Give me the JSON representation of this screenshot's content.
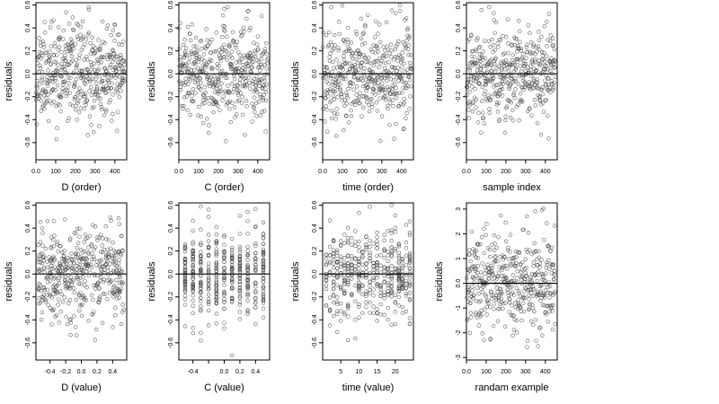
{
  "chart_data": [
    {
      "type": "scatter",
      "xlabel": "D (order)",
      "ylabel": "residuals",
      "xlim": [
        0,
        460
      ],
      "ylim": [
        -0.75,
        0.62
      ],
      "xticks": [
        0,
        100,
        200,
        300,
        400
      ],
      "yticks": [
        -0.6,
        -0.4,
        -0.2,
        0.0,
        0.2,
        0.4,
        0.6
      ],
      "hline": 0,
      "n_points": 450,
      "x_pattern": "index",
      "y_spread": 0.2,
      "seed": 11
    },
    {
      "type": "scatter",
      "xlabel": "C (order)",
      "ylabel": "residuals",
      "xlim": [
        0,
        460
      ],
      "ylim": [
        -0.75,
        0.62
      ],
      "xticks": [
        0,
        100,
        200,
        300,
        400
      ],
      "yticks": [
        -0.6,
        -0.4,
        -0.2,
        0.0,
        0.2,
        0.4,
        0.6
      ],
      "hline": 0,
      "n_points": 450,
      "x_pattern": "index",
      "y_spread": 0.2,
      "seed": 23
    },
    {
      "type": "scatter",
      "xlabel": "time (order)",
      "ylabel": "residuals",
      "xlim": [
        0,
        460
      ],
      "ylim": [
        -0.75,
        0.62
      ],
      "xticks": [
        0,
        100,
        200,
        300,
        400
      ],
      "yticks": [
        -0.6,
        -0.4,
        -0.2,
        0.0,
        0.2,
        0.4,
        0.6
      ],
      "hline": 0,
      "n_points": 450,
      "x_pattern": "index",
      "y_spread": 0.2,
      "seed": 37
    },
    {
      "type": "scatter",
      "xlabel": "sample index",
      "ylabel": "residuals",
      "xlim": [
        0,
        460
      ],
      "ylim": [
        -0.75,
        0.62
      ],
      "xticks": [
        0,
        100,
        200,
        300,
        400
      ],
      "yticks": [
        -0.6,
        -0.4,
        -0.2,
        0.0,
        0.2,
        0.4,
        0.6
      ],
      "hline": 0,
      "n_points": 450,
      "x_pattern": "index",
      "y_spread": 0.2,
      "seed": 41
    },
    {
      "type": "scatter",
      "xlabel": "D (value)",
      "ylabel": "residuals",
      "xlim": [
        -0.58,
        0.58
      ],
      "ylim": [
        -0.75,
        0.62
      ],
      "xticks": [
        -0.4,
        -0.2,
        0.0,
        0.2,
        0.4
      ],
      "xtick_labels": [
        "-0.4",
        "-0.2",
        "0.0",
        "0.2",
        "0.4"
      ],
      "yticks": [
        -0.6,
        -0.4,
        -0.2,
        0.0,
        0.2,
        0.4,
        0.6
      ],
      "hline": 0,
      "n_points": 450,
      "x_pattern": "uniform",
      "x_range": [
        -0.55,
        0.55
      ],
      "y_spread": 0.2,
      "seed": 53
    },
    {
      "type": "scatter",
      "xlabel": "C (value)",
      "ylabel": "residuals",
      "xlim": [
        -0.58,
        0.58
      ],
      "ylim": [
        -0.75,
        0.62
      ],
      "xticks": [
        -0.4,
        -0.2,
        0.0,
        0.2,
        0.4
      ],
      "xtick_labels": [
        "-0.4",
        "",
        "0.0",
        "0.2",
        "0.4"
      ],
      "yticks": [
        -0.6,
        -0.4,
        -0.2,
        0.0,
        0.2,
        0.4,
        0.6
      ],
      "hline": 0,
      "n_points": 450,
      "x_pattern": "discrete",
      "x_levels": [
        -0.5,
        -0.4,
        -0.3,
        -0.2,
        -0.1,
        0.0,
        0.1,
        0.2,
        0.3,
        0.4,
        0.5
      ],
      "y_spread": 0.2,
      "seed": 67
    },
    {
      "type": "scatter",
      "xlabel": "time (value)",
      "ylabel": "residuals",
      "xlim": [
        0,
        25
      ],
      "ylim": [
        -0.75,
        0.62
      ],
      "xticks": [
        5,
        10,
        15,
        20
      ],
      "yticks": [
        -0.6,
        -0.4,
        -0.2,
        0.0,
        0.2,
        0.4,
        0.6
      ],
      "hline": 0,
      "n_points": 450,
      "x_pattern": "discrete",
      "x_levels": [
        1,
        2,
        3,
        4,
        5,
        6,
        7,
        8,
        9,
        10,
        11,
        12,
        13,
        14,
        15,
        16,
        17,
        18,
        19,
        20,
        21,
        22,
        23,
        24
      ],
      "y_spread": 0.2,
      "seed": 79
    },
    {
      "type": "scatter",
      "xlabel": "randam example",
      "ylabel": "residuals",
      "xlim": [
        0,
        460
      ],
      "ylim": [
        -3.1,
        3.25
      ],
      "xticks": [
        0,
        100,
        200,
        300,
        400
      ],
      "yticks": [
        -3,
        -2,
        -1,
        0,
        1,
        2,
        3
      ],
      "hline": 0,
      "n_points": 450,
      "x_pattern": "index",
      "y_spread": 1.0,
      "seed": 97
    }
  ]
}
